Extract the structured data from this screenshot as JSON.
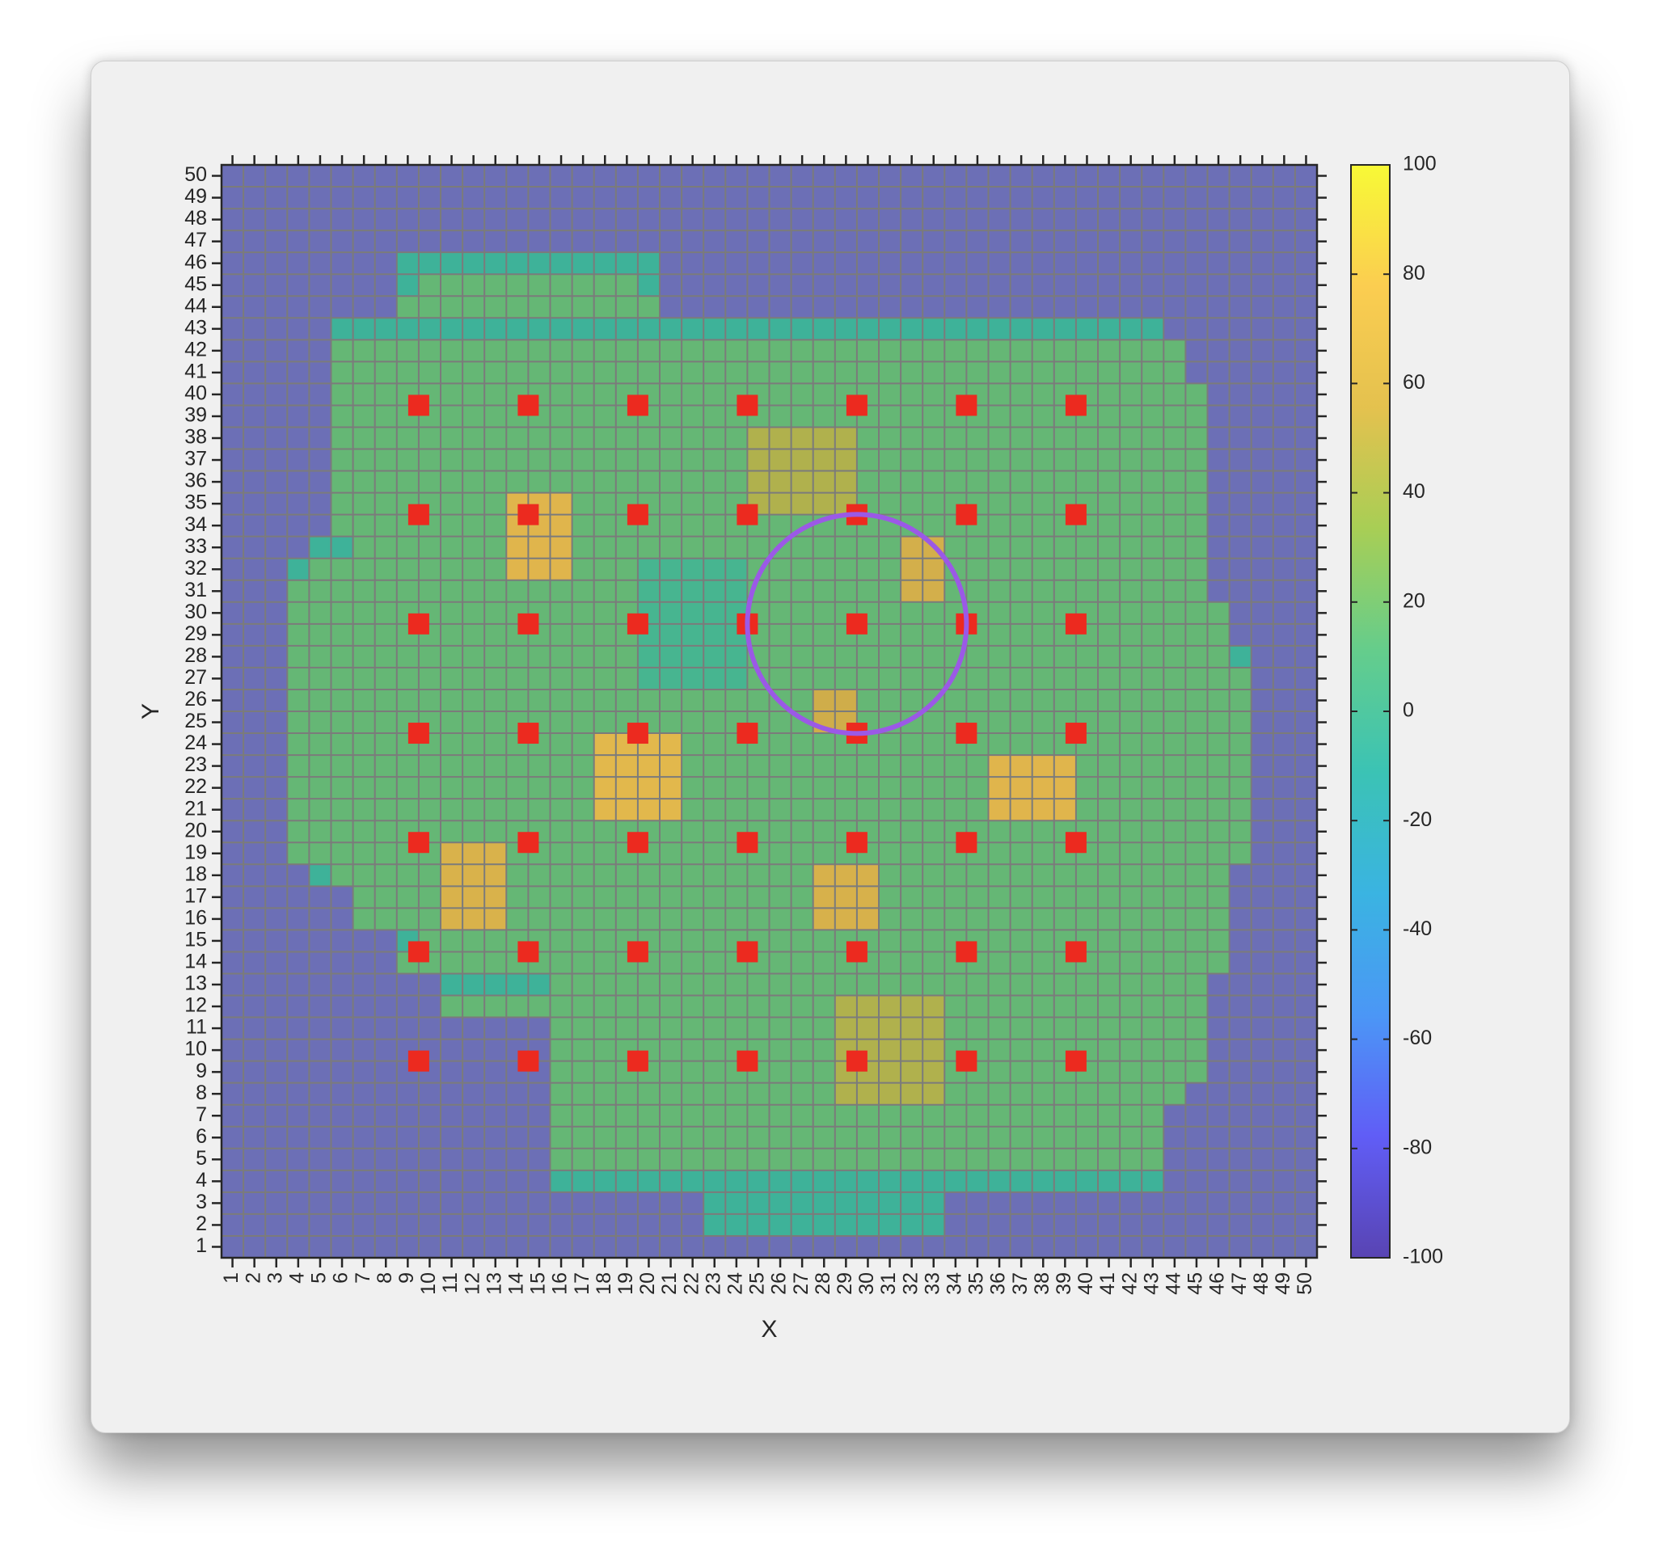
{
  "chart_data": {
    "type": "heatmap",
    "xlabel": "X",
    "ylabel": "Y",
    "xlim": [
      1,
      50
    ],
    "ylim": [
      1,
      50
    ],
    "x_ticks": [
      1,
      2,
      3,
      4,
      5,
      6,
      7,
      8,
      9,
      10,
      11,
      12,
      13,
      14,
      15,
      16,
      17,
      18,
      19,
      20,
      21,
      22,
      23,
      24,
      25,
      26,
      27,
      28,
      29,
      30,
      31,
      32,
      33,
      34,
      35,
      36,
      37,
      38,
      39,
      40,
      41,
      42,
      43,
      44,
      45,
      46,
      47,
      48,
      49,
      50
    ],
    "y_ticks": [
      1,
      2,
      3,
      4,
      5,
      6,
      7,
      8,
      9,
      10,
      11,
      12,
      13,
      14,
      15,
      16,
      17,
      18,
      19,
      20,
      21,
      22,
      23,
      24,
      25,
      26,
      27,
      28,
      29,
      30,
      31,
      32,
      33,
      34,
      35,
      36,
      37,
      38,
      39,
      40,
      41,
      42,
      43,
      44,
      45,
      46,
      47,
      48,
      49,
      50
    ],
    "colorbar": {
      "range": [
        -100,
        100
      ],
      "ticks": [
        100,
        80,
        60,
        40,
        20,
        0,
        -20,
        -40,
        -60,
        -80,
        -100
      ],
      "colors": [
        "#3e26a8",
        "#4743f7",
        "#2e87f7",
        "#1aa9df",
        "#1bbbaa",
        "#4cc77a",
        "#9bc83a",
        "#e2b932",
        "#fdc734",
        "#f9fb15"
      ]
    },
    "grid": true,
    "background_value": -100,
    "default_land_value": 18,
    "land_rows": [
      {
        "y": 46,
        "x": [
          9,
          20
        ],
        "edge": [
          9,
          20
        ]
      },
      {
        "y": 45,
        "x": [
          9,
          20
        ],
        "edge": [
          9,
          20
        ]
      },
      {
        "y": 44,
        "x": [
          9,
          20
        ]
      },
      {
        "y": 43,
        "x": [
          6,
          43
        ],
        "edge": [
          6,
          43
        ]
      },
      {
        "y": 42,
        "x": [
          6,
          44
        ]
      },
      {
        "y": 41,
        "x": [
          6,
          44
        ]
      },
      {
        "y": 40,
        "x": [
          6,
          45
        ]
      },
      {
        "y": 39,
        "x": [
          6,
          45
        ]
      },
      {
        "y": 38,
        "x": [
          6,
          45
        ]
      },
      {
        "y": 37,
        "x": [
          6,
          45
        ]
      },
      {
        "y": 36,
        "x": [
          6,
          45
        ]
      },
      {
        "y": 35,
        "x": [
          6,
          45
        ]
      },
      {
        "y": 34,
        "x": [
          6,
          45
        ]
      },
      {
        "y": 33,
        "x": [
          5,
          45
        ],
        "edge": [
          5,
          6
        ]
      },
      {
        "y": 32,
        "x": [
          4,
          45
        ],
        "edge": [
          4,
          4
        ]
      },
      {
        "y": 31,
        "x": [
          4,
          45
        ]
      },
      {
        "y": 30,
        "x": [
          4,
          46
        ]
      },
      {
        "y": 29,
        "x": [
          4,
          46
        ]
      },
      {
        "y": 28,
        "x": [
          4,
          47
        ],
        "edge": [
          47,
          47
        ]
      },
      {
        "y": 27,
        "x": [
          4,
          47
        ]
      },
      {
        "y": 26,
        "x": [
          4,
          47
        ]
      },
      {
        "y": 25,
        "x": [
          4,
          47
        ]
      },
      {
        "y": 24,
        "x": [
          4,
          47
        ]
      },
      {
        "y": 23,
        "x": [
          4,
          47
        ]
      },
      {
        "y": 22,
        "x": [
          4,
          47
        ]
      },
      {
        "y": 21,
        "x": [
          4,
          47
        ]
      },
      {
        "y": 20,
        "x": [
          4,
          47
        ]
      },
      {
        "y": 19,
        "x": [
          4,
          47
        ]
      },
      {
        "y": 18,
        "x": [
          5,
          46
        ],
        "edge": [
          5,
          5
        ]
      },
      {
        "y": 17,
        "x": [
          7,
          46
        ]
      },
      {
        "y": 16,
        "x": [
          7,
          46
        ]
      },
      {
        "y": 15,
        "x": [
          9,
          46
        ],
        "edge": [
          9,
          9
        ]
      },
      {
        "y": 14,
        "x": [
          9,
          46
        ]
      },
      {
        "y": 13,
        "x": [
          11,
          45
        ],
        "edge": [
          11,
          15
        ]
      },
      {
        "y": 12,
        "x": [
          11,
          45
        ]
      },
      {
        "y": 11,
        "x": [
          16,
          45
        ]
      },
      {
        "y": 10,
        "x": [
          16,
          45
        ]
      },
      {
        "y": 9,
        "x": [
          16,
          45
        ]
      },
      {
        "y": 8,
        "x": [
          16,
          44
        ]
      },
      {
        "y": 7,
        "x": [
          16,
          43
        ]
      },
      {
        "y": 6,
        "x": [
          16,
          43
        ]
      },
      {
        "y": 5,
        "x": [
          16,
          43
        ]
      },
      {
        "y": 4,
        "x": [
          16,
          43
        ],
        "edge": [
          16,
          43
        ]
      },
      {
        "y": 3,
        "x": [
          23,
          33
        ],
        "edge": [
          23,
          33
        ]
      },
      {
        "y": 2,
        "x": [
          23,
          33
        ],
        "edge": [
          23,
          33
        ]
      }
    ],
    "low_region": {
      "x": [
        20,
        24
      ],
      "y": [
        27,
        32
      ],
      "value": 5
    },
    "hotspots": [
      {
        "x": [
          14,
          16
        ],
        "y": [
          32,
          35
        ],
        "value": 75
      },
      {
        "x": [
          25,
          29
        ],
        "y": [
          35,
          38
        ],
        "value": 45
      },
      {
        "x": [
          32,
          33
        ],
        "y": [
          31,
          33
        ],
        "value": 62
      },
      {
        "x": [
          18,
          21
        ],
        "y": [
          21,
          24
        ],
        "value": 78
      },
      {
        "x": [
          28,
          29
        ],
        "y": [
          25,
          26
        ],
        "value": 58
      },
      {
        "x": [
          36,
          39
        ],
        "y": [
          21,
          23
        ],
        "value": 75
      },
      {
        "x": [
          11,
          13
        ],
        "y": [
          16,
          19
        ],
        "value": 68
      },
      {
        "x": [
          28,
          30
        ],
        "y": [
          16,
          18
        ],
        "value": 66
      },
      {
        "x": [
          29,
          33
        ],
        "y": [
          8,
          12
        ],
        "value": 45
      }
    ],
    "markers": {
      "color": "#ec2a1f",
      "x": [
        9.5,
        14.5,
        19.5,
        24.5,
        29.5,
        34.5,
        39.5
      ],
      "y": [
        9.5,
        14.5,
        19.5,
        24.5,
        29.5,
        34.5,
        39.5
      ]
    },
    "circle": {
      "center_x": 29.5,
      "center_y": 29.5,
      "radius": 5,
      "color": "#9b59e6"
    }
  }
}
